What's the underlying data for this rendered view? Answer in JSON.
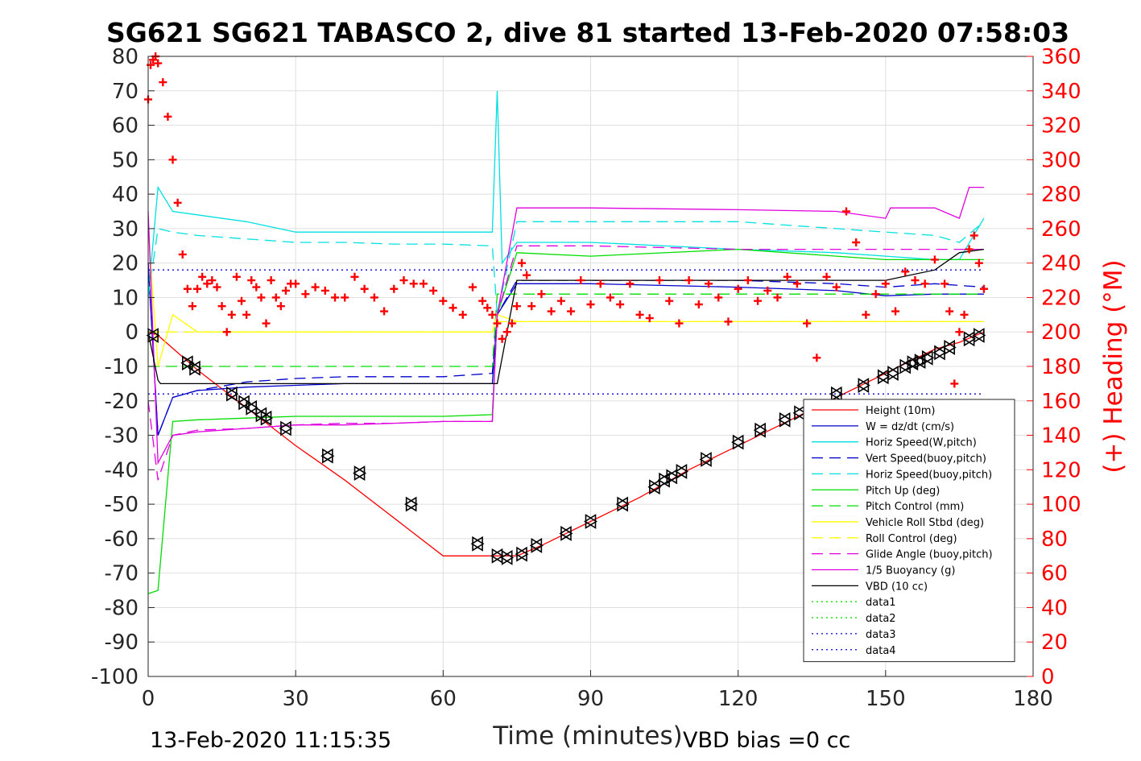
{
  "chart_data": {
    "type": "line",
    "title": "SG621 SG621 TABASCO 2, dive 81 started 13-Feb-2020 07:58:03",
    "xlabel": "Time (minutes)",
    "ylabel": "",
    "ylabel_right": "(+) Heading (°M)",
    "xlim": [
      0,
      180
    ],
    "ylim": [
      -100,
      80
    ],
    "ylim_right": [
      0,
      360
    ],
    "x_ticks": [
      "0",
      "30",
      "60",
      "90",
      "120",
      "150",
      "180"
    ],
    "y_ticks": [
      "80",
      "70",
      "60",
      "50",
      "40",
      "30",
      "20",
      "10",
      "0",
      "-10",
      "-20",
      "-30",
      "-40",
      "-50",
      "-60",
      "-70",
      "-80",
      "-90",
      "-100"
    ],
    "y_ticks_right": [
      "360",
      "340",
      "320",
      "300",
      "280",
      "260",
      "240",
      "220",
      "200",
      "180",
      "160",
      "140",
      "120",
      "100",
      "80",
      "60",
      "40",
      "20",
      "0"
    ],
    "grid": true,
    "legend_position": "bottom-right",
    "footer_left": "13-Feb-2020 11:15:35",
    "footer_right": "VBD bias =0 cc",
    "series": [
      {
        "name": "Height (10m)",
        "color": "#ff0000",
        "style": "solid",
        "x": [
          0,
          2,
          10,
          20,
          30,
          40,
          50,
          60,
          67,
          70,
          72,
          75,
          80,
          90,
          100,
          110,
          120,
          130,
          140,
          150,
          160,
          165,
          170
        ],
        "y": [
          0,
          -1,
          -11,
          -22,
          -33,
          -43,
          -54,
          -65,
          -65,
          -65,
          -65,
          -65,
          -62,
          -55,
          -48,
          -40,
          -33,
          -26,
          -19,
          -12,
          -5,
          -3,
          0
        ]
      },
      {
        "name": "W = dz/dt (cm/s)",
        "color": "#0000cc",
        "style": "solid",
        "x": [
          0,
          2,
          5,
          10,
          20,
          30,
          40,
          50,
          60,
          70,
          71,
          75,
          90,
          120,
          140,
          150,
          160,
          165,
          170
        ],
        "y": [
          20,
          -30,
          -19,
          -17,
          -16,
          -15.5,
          -15,
          -15,
          -15,
          -15,
          5,
          14,
          14,
          13,
          12,
          10.5,
          11,
          11,
          11
        ]
      },
      {
        "name": "Horiz Speed(W,pitch)",
        "color": "#00e0e0",
        "style": "solid",
        "x": [
          0,
          2,
          5,
          10,
          20,
          30,
          40,
          50,
          60,
          70,
          71,
          72,
          75,
          90,
          120,
          140,
          150,
          160,
          165,
          170
        ],
        "y": [
          10,
          42,
          35,
          34,
          32,
          29,
          29,
          29,
          29,
          29,
          70,
          20,
          26,
          26,
          24,
          23,
          22,
          21,
          21,
          33
        ]
      },
      {
        "name": "Vert Speed(buoy,pitch)",
        "color": "#0000cc",
        "style": "dashed",
        "x": [
          0,
          2,
          5,
          10,
          20,
          30,
          40,
          50,
          60,
          70,
          71,
          75,
          90,
          120,
          140,
          150,
          160,
          170
        ],
        "y": [
          20,
          -30,
          -19,
          -17,
          -14.5,
          -13.5,
          -13,
          -13,
          -13,
          -12,
          5,
          15,
          15,
          15,
          14,
          13,
          14,
          13
        ]
      },
      {
        "name": "Horiz Speed(buoy,pitch)",
        "color": "#00e0e0",
        "style": "dashed",
        "x": [
          0,
          2,
          5,
          10,
          20,
          30,
          40,
          50,
          60,
          70,
          71,
          75,
          90,
          120,
          140,
          150,
          160,
          165,
          170
        ],
        "y": [
          10,
          30,
          29,
          28,
          27,
          26,
          26,
          25.5,
          25.5,
          25,
          5,
          32,
          32,
          32,
          30,
          29,
          28,
          26,
          32
        ]
      },
      {
        "name": "Pitch Up (deg)",
        "color": "#00dd00",
        "style": "solid",
        "x": [
          0,
          2,
          5,
          10,
          20,
          30,
          40,
          50,
          60,
          70,
          71,
          75,
          90,
          120,
          140,
          150,
          160,
          170
        ],
        "y": [
          -76,
          -75,
          -26,
          -25.5,
          -25,
          -24.5,
          -24.5,
          -24.5,
          -24.5,
          -24,
          5,
          23,
          22,
          24,
          22,
          21,
          21,
          21
        ]
      },
      {
        "name": "Pitch Control (mm)",
        "color": "#00dd00",
        "style": "dashed",
        "x": [
          0,
          2,
          70,
          71,
          170
        ],
        "y": [
          -10,
          -10,
          -10,
          11,
          11
        ]
      },
      {
        "name": "Vehicle Roll Stbd (deg)",
        "color": "#ffff00",
        "style": "solid",
        "x": [
          0,
          2,
          5,
          10,
          20,
          30,
          40,
          50,
          60,
          70,
          71,
          75,
          90,
          120,
          140,
          150,
          160,
          170
        ],
        "y": [
          30,
          -10,
          5,
          0,
          0,
          0,
          0,
          0,
          0,
          0,
          5,
          3,
          3,
          3,
          3,
          3,
          3,
          3
        ]
      },
      {
        "name": "Roll Control (deg)",
        "color": "#ffff00",
        "style": "dashed",
        "x": [
          0,
          2,
          70,
          71,
          170
        ],
        "y": [
          0,
          0,
          0,
          3,
          3
        ]
      },
      {
        "name": "Glide Angle (buoy,pitch)",
        "color": "#e000e0",
        "style": "dashed",
        "x": [
          0,
          2,
          5,
          10,
          20,
          30,
          40,
          50,
          60,
          70,
          71,
          75,
          90,
          120,
          140,
          150,
          160,
          170
        ],
        "y": [
          -20,
          -43,
          -30,
          -28.5,
          -28,
          -27,
          -26.5,
          -26.5,
          -26,
          -26,
          5,
          25,
          25,
          24,
          24,
          24,
          24,
          24
        ]
      },
      {
        "name": "1/5 Buoyancy (g)",
        "color": "#e000e0",
        "style": "solid",
        "x": [
          0,
          2,
          5,
          10,
          20,
          30,
          40,
          50,
          60,
          70,
          71,
          75,
          90,
          120,
          140,
          150,
          151,
          160,
          165,
          167,
          170
        ],
        "y": [
          35,
          -38,
          -30,
          -29,
          -28,
          -27,
          -27,
          -26.5,
          -26,
          -26,
          5,
          36,
          36,
          35.5,
          35,
          33,
          36,
          36,
          33,
          42,
          42
        ]
      },
      {
        "name": "VBD (10 cc)",
        "color": "#000000",
        "style": "solid",
        "x": [
          0,
          2,
          2.5,
          70,
          71,
          75,
          150,
          160,
          165,
          170
        ],
        "y": [
          0,
          -14,
          -15,
          -15,
          -15,
          15,
          15,
          18,
          23,
          24
        ]
      },
      {
        "name": "data1",
        "color": "#00dd00",
        "style": "dotted",
        "x": [],
        "y": []
      },
      {
        "name": "data2",
        "color": "#00dd00",
        "style": "dotted",
        "x": [],
        "y": []
      },
      {
        "name": "data3",
        "color": "#0000cc",
        "style": "dotted",
        "x": [
          0,
          170
        ],
        "y": [
          18,
          18
        ]
      },
      {
        "name": "data4",
        "color": "#0000cc",
        "style": "dotted",
        "x": [
          0,
          170
        ],
        "y": [
          -18,
          -18
        ]
      }
    ],
    "markers": {
      "name": "Height (10m) samples",
      "color": "#000000",
      "x": [
        1,
        8,
        9.5,
        17,
        19.5,
        21,
        23,
        24,
        28,
        36.5,
        43,
        53.5,
        67,
        71,
        73,
        76,
        79,
        85,
        90,
        96.5,
        103,
        105,
        106.5,
        108.5,
        113.5,
        120,
        124.5,
        129.5,
        132.5,
        140,
        145.5,
        149.5,
        151.5,
        154,
        155.5,
        157,
        158.5,
        161,
        163,
        167,
        169
      ],
      "y": [
        -1,
        -9,
        -10.5,
        -18,
        -20.5,
        -22,
        -24,
        -25,
        -28,
        -36,
        -41,
        -50,
        -61.5,
        -65,
        -65.5,
        -64.5,
        -62,
        -58.5,
        -55,
        -50,
        -45,
        -43,
        -42,
        -40.5,
        -37,
        -32,
        -28.5,
        -25.5,
        -23.5,
        -18,
        -15.5,
        -13,
        -12,
        -10,
        -9,
        -8.5,
        -7.5,
        -6,
        -4.5,
        -2,
        -1
      ]
    },
    "heading": {
      "name": "(+) Heading (°M)",
      "color": "#ff0000",
      "x": [
        0,
        0.5,
        1,
        1.5,
        2,
        3,
        4,
        5,
        6,
        7,
        8,
        9,
        10,
        11,
        12,
        13,
        14,
        15,
        16,
        17,
        18,
        19,
        20,
        21,
        22,
        23,
        24,
        25,
        26,
        27,
        28,
        29,
        30,
        32,
        34,
        36,
        38,
        40,
        42,
        44,
        46,
        48,
        50,
        52,
        54,
        56,
        58,
        60,
        62,
        64,
        66,
        68,
        69,
        70,
        71,
        72,
        73,
        74,
        75,
        76,
        77,
        78,
        80,
        82,
        84,
        86,
        88,
        90,
        92,
        94,
        96,
        98,
        100,
        102,
        104,
        106,
        108,
        110,
        112,
        114,
        116,
        118,
        120,
        122,
        124,
        126,
        128,
        130,
        132,
        134,
        136,
        138,
        140,
        142,
        144,
        146,
        148,
        150,
        152,
        154,
        156,
        158,
        160,
        162,
        163,
        164,
        165,
        166,
        167,
        168,
        169,
        170
      ],
      "y": [
        335,
        355,
        358,
        360,
        356,
        345,
        325,
        300,
        275,
        245,
        225,
        215,
        225,
        232,
        228,
        230,
        226,
        215,
        200,
        210,
        232,
        218,
        210,
        230,
        226,
        220,
        205,
        230,
        220,
        215,
        224,
        228,
        228,
        222,
        226,
        224,
        220,
        220,
        232,
        225,
        220,
        212,
        225,
        230,
        228,
        228,
        224,
        218,
        214,
        210,
        226,
        218,
        214,
        210,
        205,
        196,
        200,
        205,
        215,
        240,
        233,
        215,
        222,
        212,
        218,
        212,
        230,
        216,
        228,
        220,
        216,
        228,
        210,
        208,
        230,
        218,
        205,
        230,
        216,
        228,
        220,
        206,
        225,
        230,
        218,
        224,
        220,
        232,
        228,
        205,
        185,
        232,
        226,
        270,
        252,
        210,
        222,
        228,
        212,
        235,
        230,
        228,
        242,
        228,
        212,
        170,
        200,
        210,
        248,
        256,
        240,
        225
      ]
    }
  }
}
